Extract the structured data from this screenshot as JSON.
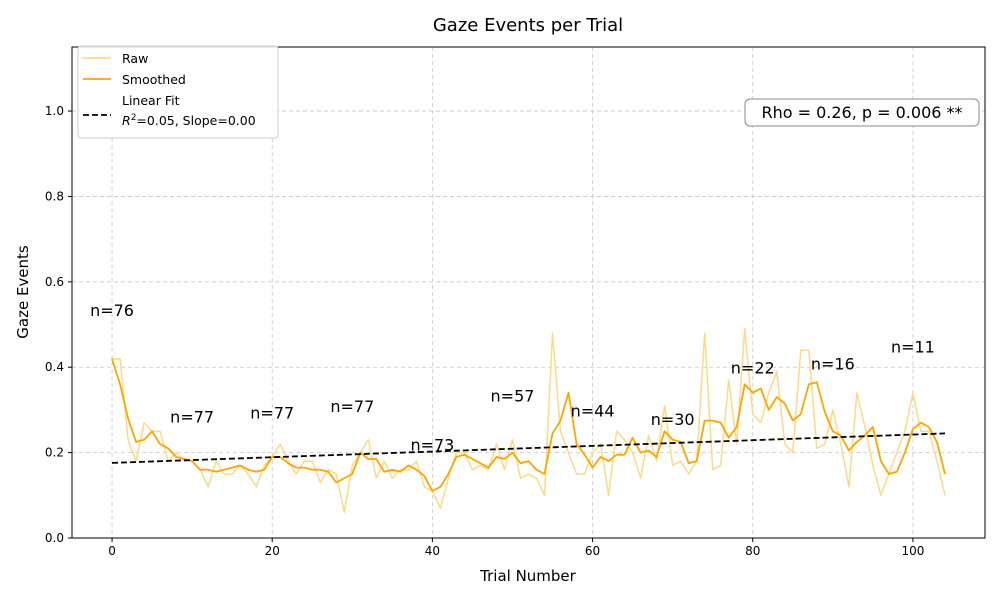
{
  "chart_data": {
    "type": "line",
    "title": "Gaze Events per Trial",
    "xlabel": "Trial Number",
    "ylabel": "Gaze Events",
    "xlim": [
      -5,
      109
    ],
    "ylim": [
      0.0,
      1.15
    ],
    "xticks": [
      0,
      20,
      40,
      60,
      80,
      100
    ],
    "yticks": [
      0.0,
      0.2,
      0.4,
      0.6,
      0.8,
      1.0
    ],
    "xtick_labels": [
      "0",
      "20",
      "40",
      "60",
      "80",
      "100"
    ],
    "ytick_labels": [
      "0.0",
      "0.2",
      "0.4",
      "0.6",
      "0.8",
      "1.0"
    ],
    "grid": true,
    "legend_position": "top-left",
    "series": [
      {
        "name": "Raw",
        "color": "#fdd98a",
        "style": "solid",
        "x": [
          0,
          1,
          2,
          3,
          4,
          5,
          6,
          7,
          8,
          9,
          10,
          11,
          12,
          13,
          14,
          15,
          16,
          17,
          18,
          19,
          20,
          21,
          22,
          23,
          24,
          25,
          26,
          27,
          28,
          29,
          30,
          31,
          32,
          33,
          34,
          35,
          36,
          37,
          38,
          39,
          40,
          41,
          42,
          43,
          44,
          45,
          46,
          47,
          48,
          49,
          50,
          51,
          52,
          53,
          54,
          55,
          56,
          57,
          58,
          59,
          60,
          61,
          62,
          63,
          64,
          65,
          66,
          67,
          68,
          69,
          70,
          71,
          72,
          73,
          74,
          75,
          76,
          77,
          78,
          79,
          80,
          81,
          82,
          83,
          84,
          85,
          86,
          87,
          88,
          89,
          90,
          91,
          92,
          93,
          94,
          95,
          96,
          97,
          98,
          99,
          100,
          101,
          102,
          103,
          104
        ],
        "values": [
          0.42,
          0.42,
          0.23,
          0.18,
          0.27,
          0.25,
          0.25,
          0.18,
          0.2,
          0.18,
          0.18,
          0.16,
          0.12,
          0.18,
          0.15,
          0.15,
          0.17,
          0.15,
          0.12,
          0.17,
          0.19,
          0.22,
          0.18,
          0.15,
          0.18,
          0.18,
          0.13,
          0.16,
          0.15,
          0.06,
          0.17,
          0.2,
          0.23,
          0.14,
          0.18,
          0.14,
          0.16,
          0.16,
          0.18,
          0.12,
          0.11,
          0.07,
          0.14,
          0.2,
          0.2,
          0.16,
          0.17,
          0.16,
          0.22,
          0.16,
          0.23,
          0.14,
          0.15,
          0.14,
          0.1,
          0.48,
          0.25,
          0.2,
          0.15,
          0.15,
          0.2,
          0.22,
          0.1,
          0.25,
          0.23,
          0.2,
          0.14,
          0.24,
          0.18,
          0.31,
          0.17,
          0.18,
          0.15,
          0.18,
          0.48,
          0.16,
          0.17,
          0.37,
          0.22,
          0.49,
          0.29,
          0.27,
          0.34,
          0.39,
          0.22,
          0.2,
          0.44,
          0.44,
          0.21,
          0.22,
          0.3,
          0.22,
          0.12,
          0.34,
          0.26,
          0.17,
          0.1,
          0.15,
          0.2,
          0.25,
          0.34,
          0.25,
          0.25,
          0.18,
          0.1
        ]
      },
      {
        "name": "Smoothed",
        "color": "#ffa500",
        "style": "solid",
        "x": [
          0,
          1,
          2,
          3,
          4,
          5,
          6,
          7,
          8,
          9,
          10,
          11,
          12,
          13,
          14,
          15,
          16,
          17,
          18,
          19,
          20,
          21,
          22,
          23,
          24,
          25,
          26,
          27,
          28,
          29,
          30,
          31,
          32,
          33,
          34,
          35,
          36,
          37,
          38,
          39,
          40,
          41,
          42,
          43,
          44,
          45,
          46,
          47,
          48,
          49,
          50,
          51,
          52,
          53,
          54,
          55,
          56,
          57,
          58,
          59,
          60,
          61,
          62,
          63,
          64,
          65,
          66,
          67,
          68,
          69,
          70,
          71,
          72,
          73,
          74,
          75,
          76,
          77,
          78,
          79,
          80,
          81,
          82,
          83,
          84,
          85,
          86,
          87,
          88,
          89,
          90,
          91,
          92,
          93,
          94,
          95,
          96,
          97,
          98,
          99,
          100,
          101,
          102,
          103,
          104
        ],
        "values": [
          0.42,
          0.36,
          0.28,
          0.225,
          0.23,
          0.25,
          0.22,
          0.21,
          0.19,
          0.185,
          0.18,
          0.16,
          0.16,
          0.155,
          0.16,
          0.165,
          0.17,
          0.16,
          0.155,
          0.16,
          0.19,
          0.19,
          0.175,
          0.165,
          0.165,
          0.16,
          0.16,
          0.155,
          0.13,
          0.14,
          0.15,
          0.2,
          0.185,
          0.185,
          0.155,
          0.16,
          0.155,
          0.17,
          0.16,
          0.145,
          0.11,
          0.12,
          0.15,
          0.19,
          0.195,
          0.185,
          0.175,
          0.165,
          0.19,
          0.185,
          0.2,
          0.175,
          0.18,
          0.16,
          0.15,
          0.245,
          0.275,
          0.34,
          0.22,
          0.195,
          0.165,
          0.19,
          0.18,
          0.195,
          0.195,
          0.235,
          0.2,
          0.205,
          0.19,
          0.25,
          0.23,
          0.225,
          0.175,
          0.18,
          0.275,
          0.275,
          0.27,
          0.235,
          0.26,
          0.36,
          0.34,
          0.35,
          0.3,
          0.33,
          0.315,
          0.275,
          0.29,
          0.36,
          0.365,
          0.295,
          0.25,
          0.24,
          0.205,
          0.225,
          0.24,
          0.26,
          0.18,
          0.15,
          0.155,
          0.2,
          0.255,
          0.27,
          0.26,
          0.225,
          0.15
        ]
      },
      {
        "name": "Linear Fit",
        "color": "#000000",
        "style": "dashed",
        "x": [
          0,
          104
        ],
        "values": [
          0.176,
          0.245
        ]
      }
    ],
    "legend": {
      "raw_label": "Raw",
      "smoothed_label": "Smoothed",
      "fit_label_line1": "Linear Fit",
      "fit_label_line2_r2": "R",
      "fit_label_line2_sup": "2",
      "fit_label_line2_rest": "=0.05, Slope=0.00"
    },
    "annotations": {
      "stat_box": "Rho = 0.26, p = 0.006 **",
      "n_labels": [
        {
          "text": "n=76",
          "x": 0,
          "y": 0.52
        },
        {
          "text": "n=77",
          "x": 10,
          "y": 0.27
        },
        {
          "text": "n=77",
          "x": 20,
          "y": 0.28
        },
        {
          "text": "n=77",
          "x": 30,
          "y": 0.295
        },
        {
          "text": "n=73",
          "x": 40,
          "y": 0.205
        },
        {
          "text": "n=57",
          "x": 50,
          "y": 0.32
        },
        {
          "text": "n=44",
          "x": 60,
          "y": 0.285
        },
        {
          "text": "n=30",
          "x": 70,
          "y": 0.265
        },
        {
          "text": "n=22",
          "x": 80,
          "y": 0.385
        },
        {
          "text": "n=16",
          "x": 90,
          "y": 0.395
        },
        {
          "text": "n=11",
          "x": 100,
          "y": 0.435
        }
      ]
    }
  }
}
